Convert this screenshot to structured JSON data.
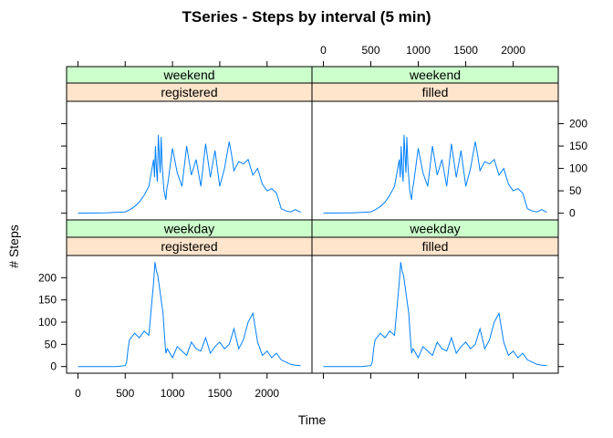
{
  "chart_data": {
    "type": "line",
    "title": "TSeries - Steps by interval (5 min)",
    "xlabel": "Time",
    "ylabel": "# Steps",
    "xlim": [
      -120,
      2475
    ],
    "ylim": [
      -15,
      250
    ],
    "x_ticks": [
      0,
      500,
      1000,
      1500,
      2000
    ],
    "y_ticks": [
      0,
      50,
      100,
      150,
      200
    ],
    "grid": false,
    "legend": "none",
    "colors": {
      "line": "#0080ff",
      "strip_top": "#ccffcc",
      "strip_bottom": "#ffe5cc"
    },
    "panels": [
      {
        "id": "weekend-registered",
        "strip_top": "weekend",
        "strip_bottom": "registered",
        "x": [
          0,
          300,
          500,
          550,
          600,
          650,
          700,
          750,
          800,
          810,
          820,
          830,
          840,
          850,
          860,
          870,
          880,
          890,
          900,
          910,
          920,
          930,
          940,
          950,
          1000,
          1050,
          1100,
          1150,
          1200,
          1250,
          1300,
          1350,
          1400,
          1450,
          1500,
          1550,
          1600,
          1625,
          1650,
          1700,
          1750,
          1800,
          1850,
          1900,
          1950,
          2000,
          2050,
          2100,
          2150,
          2200,
          2250,
          2300,
          2355
        ],
        "values": [
          0,
          1,
          3,
          8,
          15,
          25,
          40,
          60,
          120,
          80,
          150,
          100,
          70,
          175,
          130,
          90,
          170,
          110,
          80,
          50,
          40,
          30,
          55,
          65,
          145,
          90,
          60,
          150,
          85,
          120,
          60,
          155,
          80,
          140,
          60,
          100,
          160,
          130,
          95,
          115,
          110,
          120,
          85,
          100,
          65,
          50,
          55,
          45,
          10,
          5,
          3,
          8,
          2
        ]
      },
      {
        "id": "weekend-filled",
        "strip_top": "weekend",
        "strip_bottom": "filled",
        "x": [
          0,
          300,
          500,
          550,
          600,
          650,
          700,
          750,
          800,
          810,
          820,
          830,
          840,
          850,
          860,
          870,
          880,
          890,
          900,
          910,
          920,
          930,
          940,
          950,
          1000,
          1050,
          1100,
          1150,
          1200,
          1250,
          1300,
          1350,
          1400,
          1450,
          1500,
          1550,
          1600,
          1625,
          1650,
          1700,
          1750,
          1800,
          1850,
          1900,
          1950,
          2000,
          2050,
          2100,
          2150,
          2200,
          2250,
          2300,
          2355
        ],
        "values": [
          0,
          1,
          3,
          8,
          15,
          25,
          40,
          60,
          120,
          80,
          150,
          100,
          70,
          175,
          130,
          90,
          170,
          110,
          80,
          50,
          40,
          30,
          55,
          65,
          145,
          90,
          60,
          150,
          85,
          120,
          60,
          155,
          80,
          140,
          60,
          100,
          160,
          130,
          95,
          115,
          110,
          120,
          85,
          100,
          65,
          50,
          55,
          45,
          10,
          5,
          3,
          8,
          2
        ]
      },
      {
        "id": "weekday-registered",
        "strip_top": "weekday",
        "strip_bottom": "registered",
        "x": [
          0,
          200,
          400,
          500,
          515,
          530,
          545,
          600,
          650,
          700,
          750,
          800,
          815,
          830,
          845,
          900,
          915,
          930,
          945,
          1000,
          1050,
          1100,
          1150,
          1200,
          1250,
          1300,
          1350,
          1400,
          1450,
          1500,
          1550,
          1600,
          1650,
          1700,
          1750,
          1800,
          1850,
          1900,
          1950,
          2000,
          2050,
          2100,
          2150,
          2200,
          2250,
          2300,
          2355
        ],
        "values": [
          0,
          0,
          0,
          2,
          10,
          40,
          60,
          75,
          65,
          80,
          70,
          190,
          235,
          215,
          205,
          120,
          70,
          30,
          40,
          20,
          45,
          35,
          25,
          55,
          40,
          35,
          65,
          30,
          45,
          55,
          40,
          50,
          85,
          40,
          60,
          100,
          120,
          55,
          25,
          35,
          20,
          30,
          15,
          10,
          5,
          3,
          2
        ]
      },
      {
        "id": "weekday-filled",
        "strip_top": "weekday",
        "strip_bottom": "filled",
        "x": [
          0,
          200,
          400,
          500,
          515,
          530,
          545,
          600,
          650,
          700,
          750,
          800,
          815,
          830,
          845,
          900,
          915,
          930,
          945,
          1000,
          1050,
          1100,
          1150,
          1200,
          1250,
          1300,
          1350,
          1400,
          1450,
          1500,
          1550,
          1600,
          1650,
          1700,
          1750,
          1800,
          1850,
          1900,
          1950,
          2000,
          2050,
          2100,
          2150,
          2200,
          2250,
          2300,
          2355
        ],
        "values": [
          0,
          0,
          0,
          2,
          10,
          40,
          60,
          75,
          65,
          80,
          70,
          190,
          235,
          215,
          205,
          120,
          70,
          30,
          40,
          20,
          45,
          35,
          25,
          55,
          40,
          35,
          65,
          30,
          45,
          55,
          40,
          50,
          85,
          40,
          60,
          100,
          120,
          55,
          25,
          35,
          20,
          30,
          15,
          10,
          5,
          3,
          2
        ]
      }
    ]
  }
}
